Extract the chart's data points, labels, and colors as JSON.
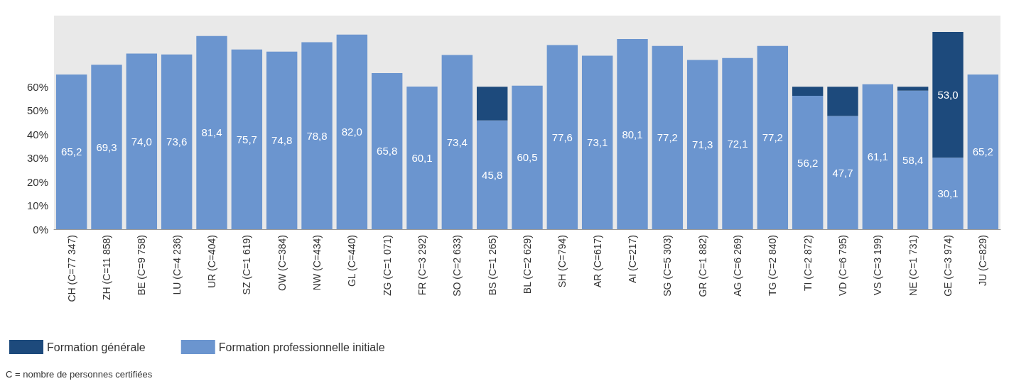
{
  "chart_data": {
    "type": "bar",
    "stacked": true,
    "categories": [
      "CH (C=77 347)",
      "ZH (C=11 858)",
      "BE (C=9 758)",
      "LU (C=4 236)",
      "UR (C=404)",
      "SZ (C=1 619)",
      "OW (C=384)",
      "NW (C=434)",
      "GL (C=440)",
      "ZG (C=1 071)",
      "FR (C=3 292)",
      "SO (C=2 633)",
      "BS (C=1 265)",
      "BL (C=2 629)",
      "SH (C=794)",
      "AR (C=617)",
      "AI (C=217)",
      "SG (C=5 303)",
      "GR (C=1 882)",
      "AG (C=6 269)",
      "TG (C=2 840)",
      "TI (C=2 872)",
      "VD (C=6 795)",
      "VS (C=3 199)",
      "NE (C=1 731)",
      "GE (C=3 974)",
      "JU (C=829)"
    ],
    "series": [
      {
        "name": "Formation professionnelle initiale",
        "color": "#6b95cf",
        "values": [
          65.2,
          69.3,
          74.0,
          73.6,
          81.4,
          75.7,
          74.8,
          78.8,
          82.0,
          65.8,
          60.1,
          73.4,
          45.8,
          60.5,
          77.6,
          73.1,
          80.1,
          77.2,
          71.3,
          72.1,
          77.2,
          56.2,
          47.7,
          61.1,
          58.4,
          30.1,
          65.2
        ],
        "value_labels": [
          "65,2",
          "69,3",
          "74,0",
          "73,6",
          "81,4",
          "75,7",
          "74,8",
          "78,8",
          "82,0",
          "65,8",
          "60,1",
          "73,4",
          "45,8",
          "60,5",
          "77,6",
          "73,1",
          "80,1",
          "77,2",
          "71,3",
          "72,1",
          "77,2",
          "56,2",
          "47,7",
          "61,1",
          "58,4",
          "30,1",
          "65,2"
        ]
      },
      {
        "name": "Formation générale",
        "color": "#1d4a7c",
        "values": [
          null,
          null,
          null,
          null,
          null,
          null,
          null,
          null,
          null,
          null,
          null,
          null,
          14.2,
          null,
          null,
          null,
          null,
          null,
          null,
          null,
          null,
          3.8,
          12.3,
          null,
          1.6,
          53.0,
          null
        ],
        "value_labels": [
          null,
          null,
          null,
          null,
          null,
          null,
          null,
          null,
          null,
          null,
          null,
          null,
          null,
          null,
          null,
          null,
          null,
          null,
          null,
          null,
          null,
          null,
          null,
          null,
          null,
          "53,0",
          null
        ]
      }
    ],
    "ylim": [
      0,
      90
    ],
    "yticks": [
      {
        "value": 0,
        "label": "0%"
      },
      {
        "value": 10,
        "label": "10%"
      },
      {
        "value": 20,
        "label": "20%"
      },
      {
        "value": 30,
        "label": "30%"
      },
      {
        "value": 40,
        "label": "40%"
      },
      {
        "value": 50,
        "label": "50%"
      },
      {
        "value": 60,
        "label": "60%"
      }
    ],
    "grid": false,
    "legend": "bottom left",
    "annotations": [
      "C = nombre de personnes certifiées"
    ]
  }
}
